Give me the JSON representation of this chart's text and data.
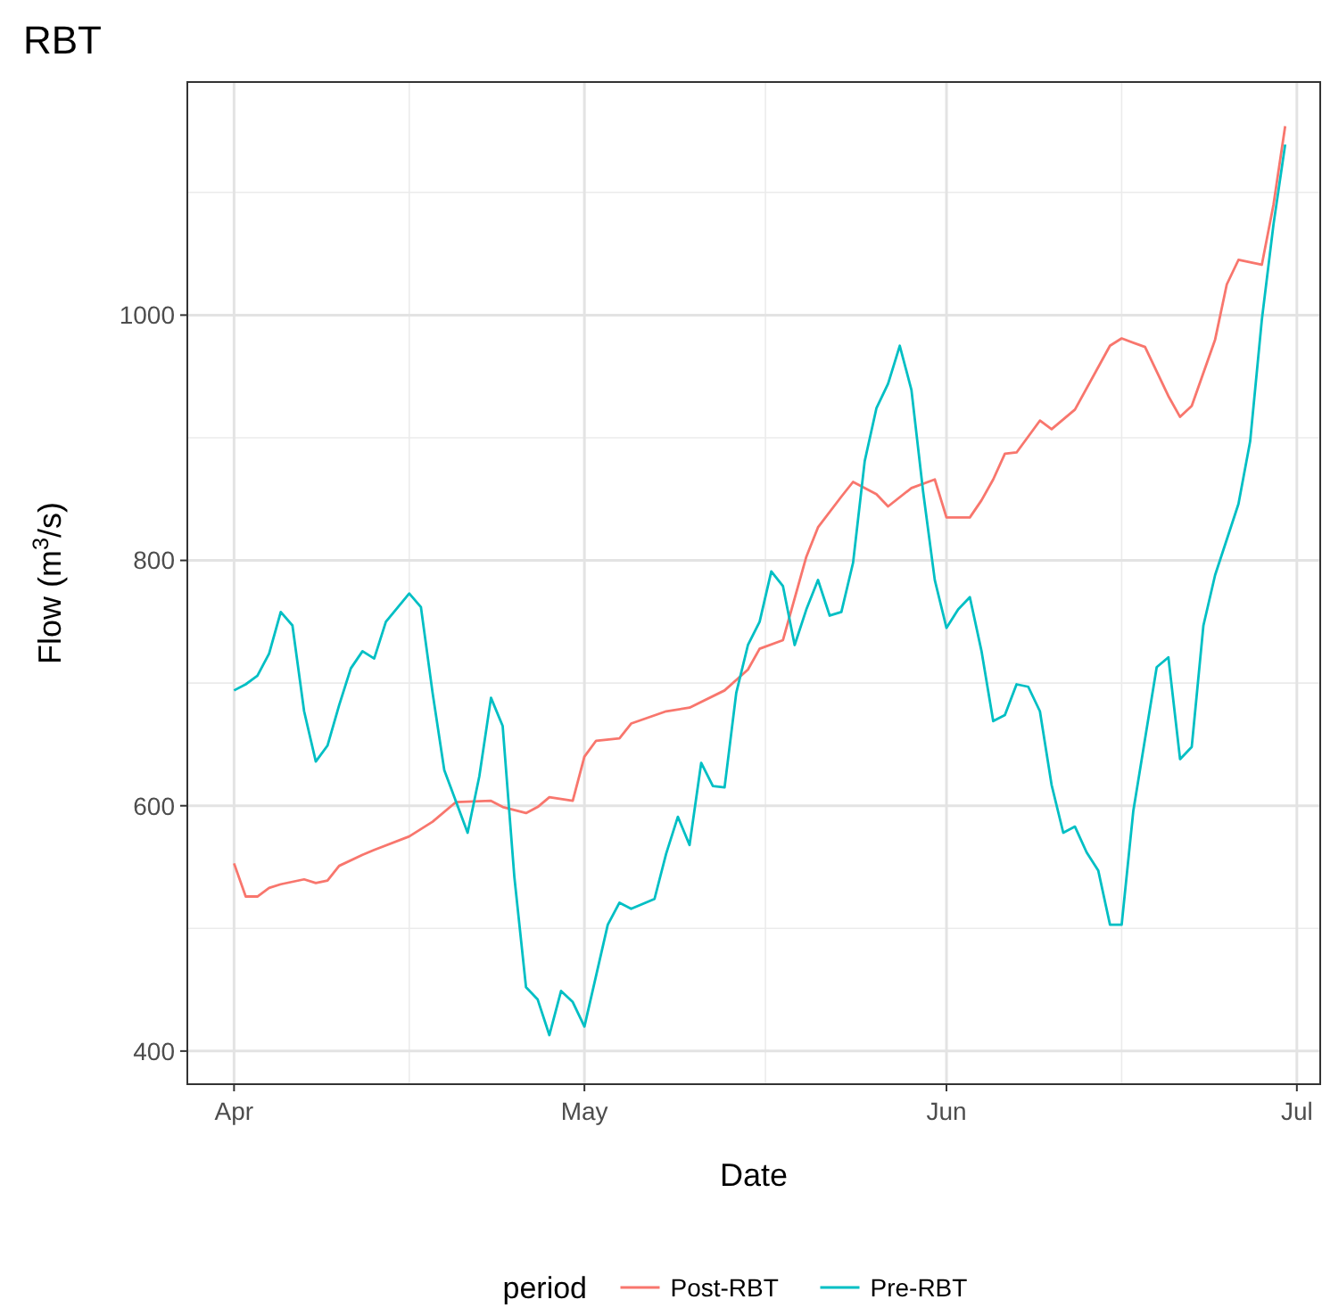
{
  "chart_data": {
    "type": "line",
    "title": "RBT",
    "xlabel": "Date",
    "ylabel": "Flow (m$^{3}$/s)",
    "legend_title": "period",
    "legend": "bottom",
    "grid": true,
    "xlim": [
      "--03-28",
      "--07-03"
    ],
    "xticks": [
      {
        "value": "--04-01",
        "label": "Apr"
      },
      {
        "value": "--05-01",
        "label": "May"
      },
      {
        "value": "--06-01",
        "label": "Jun"
      },
      {
        "value": "--07-01",
        "label": "Jul"
      }
    ],
    "ylim": [
      373,
      1190
    ],
    "yticks": [
      400,
      600,
      800,
      1000
    ],
    "series": [
      {
        "name": "Post-RBT",
        "color": "#f8766d",
        "x": [
          "--04-01",
          "--04-02",
          "--04-03",
          "--04-04",
          "--04-05",
          "--04-07",
          "--04-08",
          "--04-09",
          "--04-10",
          "--04-12",
          "--04-13",
          "--04-16",
          "--04-18",
          "--04-20",
          "--04-23",
          "--04-24",
          "--04-26",
          "--04-27",
          "--04-28",
          "--04-30",
          "--05-01",
          "--05-02",
          "--05-04",
          "--05-05",
          "--05-08",
          "--05-10",
          "--05-13",
          "--05-15",
          "--05-16",
          "--05-18",
          "--05-19",
          "--05-20",
          "--05-21",
          "--05-23",
          "--05-24",
          "--05-26",
          "--05-27",
          "--05-29",
          "--05-31",
          "--06-01",
          "--06-03",
          "--06-04",
          "--06-05",
          "--06-06",
          "--06-07",
          "--06-09",
          "--06-10",
          "--06-12",
          "--06-15",
          "--06-16",
          "--06-18",
          "--06-20",
          "--06-21",
          "--06-22",
          "--06-24",
          "--06-25",
          "--06-26",
          "--06-28",
          "--06-29",
          "--06-30"
        ],
        "values": [
          553,
          526,
          526,
          533,
          536,
          540,
          537,
          539,
          551,
          560,
          564,
          575,
          587,
          603,
          604,
          599,
          594,
          599,
          607,
          604,
          640,
          653,
          655,
          667,
          677,
          680,
          694,
          711,
          728,
          735,
          769,
          803,
          827,
          852,
          864,
          854,
          844,
          859,
          866,
          835,
          835,
          849,
          866,
          887,
          888,
          914,
          907,
          923,
          975,
          981,
          974,
          934,
          917,
          926,
          980,
          1025,
          1045,
          1041,
          1090,
          1154
        ]
      },
      {
        "name": "Pre-RBT",
        "color": "#00bfc4",
        "x": [
          "--04-01",
          "--04-02",
          "--04-03",
          "--04-04",
          "--04-05",
          "--04-06",
          "--04-07",
          "--04-08",
          "--04-09",
          "--04-10",
          "--04-11",
          "--04-12",
          "--04-13",
          "--04-14",
          "--04-16",
          "--04-17",
          "--04-18",
          "--04-19",
          "--04-21",
          "--04-22",
          "--04-23",
          "--04-24",
          "--04-25",
          "--04-26",
          "--04-27",
          "--04-28",
          "--04-29",
          "--04-30",
          "--05-01",
          "--05-03",
          "--05-04",
          "--05-05",
          "--05-07",
          "--05-08",
          "--05-09",
          "--05-10",
          "--05-11",
          "--05-12",
          "--05-13",
          "--05-14",
          "--05-15",
          "--05-16",
          "--05-17",
          "--05-18",
          "--05-19",
          "--05-20",
          "--05-21",
          "--05-22",
          "--05-23",
          "--05-24",
          "--05-25",
          "--05-26",
          "--05-27",
          "--05-28",
          "--05-29",
          "--05-30",
          "--05-31",
          "--06-01",
          "--06-02",
          "--06-03",
          "--06-04",
          "--06-05",
          "--06-06",
          "--06-07",
          "--06-08",
          "--06-09",
          "--06-10",
          "--06-11",
          "--06-12",
          "--06-13",
          "--06-14",
          "--06-15",
          "--06-16",
          "--06-17",
          "--06-19",
          "--06-20",
          "--06-21",
          "--06-22",
          "--06-23",
          "--06-24",
          "--06-26",
          "--06-27",
          "--06-28",
          "--06-29",
          "--06-30"
        ],
        "values": [
          694,
          699,
          706,
          724,
          758,
          747,
          677,
          636,
          649,
          682,
          712,
          726,
          720,
          750,
          773,
          762,
          692,
          629,
          578,
          624,
          688,
          665,
          542,
          452,
          442,
          413,
          449,
          440,
          420,
          503,
          521,
          516,
          524,
          561,
          591,
          568,
          635,
          616,
          615,
          692,
          731,
          750,
          791,
          779,
          731,
          760,
          784,
          755,
          758,
          798,
          881,
          924,
          944,
          975,
          939,
          856,
          784,
          745,
          760,
          770,
          726,
          669,
          674,
          699,
          697,
          677,
          617,
          578,
          583,
          562,
          547,
          503,
          503,
          596,
          713,
          721,
          638,
          648,
          747,
          788,
          846,
          897,
          996,
          1074,
          1139
        ]
      }
    ]
  }
}
